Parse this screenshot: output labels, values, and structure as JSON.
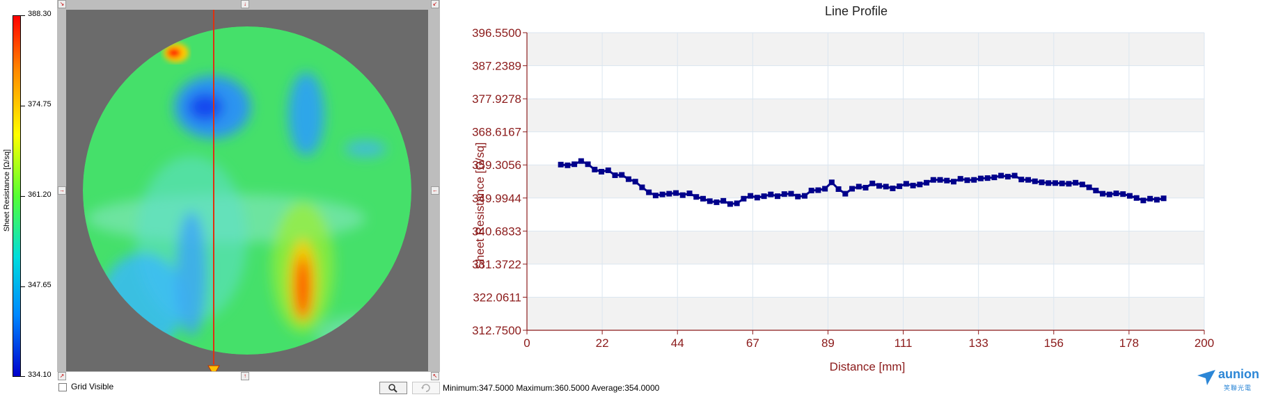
{
  "colorbar": {
    "title": "Sheet Resistance [Ω/sq]",
    "labels": [
      "388.30",
      "374.75",
      "361.20",
      "347.65",
      "334.10"
    ]
  },
  "map": {
    "grid_visible_label": "Grid Visible",
    "grid_visible_checked": false,
    "stats": "Minimum:347.5000  Maximum:360.5000  Average:354.0000",
    "colors": {
      "base": "#45e06a",
      "low": "#2277ff",
      "high": "#ff3300",
      "line": "#e03010"
    }
  },
  "chart": {
    "title": "Line Profile",
    "xlabel": "Distance [mm]",
    "ylabel": "Sheet Resistance [Ω/sq]"
  },
  "chart_data": {
    "type": "scatter",
    "title": "Line Profile",
    "xlabel": "Distance [mm]",
    "ylabel": "Sheet Resistance [Ω/sq]",
    "xlim": [
      0,
      200
    ],
    "ylim": [
      312.75,
      396.55
    ],
    "xticks": [
      "0",
      "22",
      "44",
      "67",
      "89",
      "111",
      "133",
      "156",
      "178",
      "200"
    ],
    "yticks": [
      "396.5500",
      "387.2389",
      "377.9278",
      "368.6167",
      "359.3056",
      "349.9944",
      "340.6833",
      "331.3722",
      "322.0611",
      "312.7500"
    ],
    "grid": true,
    "marker_color": "#00008b",
    "series": [
      {
        "x": [
          10,
          12,
          14,
          16,
          18,
          20,
          22,
          24,
          26,
          28,
          30,
          32,
          34,
          36,
          38,
          40,
          42,
          44,
          46,
          48,
          50,
          52,
          54,
          56,
          58,
          60,
          62,
          64,
          66,
          68,
          70,
          72,
          74,
          76,
          78,
          80,
          82,
          84,
          86,
          88,
          90,
          92,
          94,
          96,
          98,
          100,
          102,
          104,
          106,
          108,
          110,
          112,
          114,
          116,
          118,
          120,
          122,
          124,
          126,
          128,
          130,
          132,
          134,
          136,
          138,
          140,
          142,
          144,
          146,
          148,
          150,
          152,
          154,
          156,
          158,
          160,
          162,
          164,
          166,
          168,
          170,
          172,
          174,
          176,
          178,
          180,
          182,
          184,
          186,
          188
        ],
        "y": [
          359.4,
          359.2,
          359.5,
          360.4,
          359.5,
          358.0,
          357.4,
          357.8,
          356.4,
          356.5,
          355.3,
          354.6,
          353.0,
          351.6,
          350.7,
          351.0,
          351.2,
          351.4,
          350.8,
          351.3,
          350.3,
          349.8,
          349.1,
          348.8,
          349.2,
          348.3,
          348.5,
          349.8,
          350.6,
          350.1,
          350.5,
          351.0,
          350.5,
          351.1,
          351.2,
          350.4,
          350.6,
          352.1,
          352.2,
          352.6,
          354.4,
          352.5,
          351.2,
          352.6,
          353.2,
          352.9,
          354.1,
          353.4,
          353.2,
          352.7,
          353.3,
          354.0,
          353.5,
          353.8,
          354.3,
          355.1,
          355.1,
          354.9,
          354.6,
          355.4,
          355.0,
          355.1,
          355.5,
          355.6,
          355.8,
          356.3,
          356.0,
          356.3,
          355.2,
          355.1,
          354.7,
          354.4,
          354.2,
          354.2,
          354.1,
          354.0,
          354.3,
          353.8,
          353.0,
          352.1,
          351.2,
          351.0,
          351.3,
          351.1,
          350.6,
          350.0,
          349.3,
          349.8,
          349.5,
          349.9
        ]
      }
    ]
  },
  "logo": {
    "name": "aunion",
    "sub": "笑聯光電"
  }
}
